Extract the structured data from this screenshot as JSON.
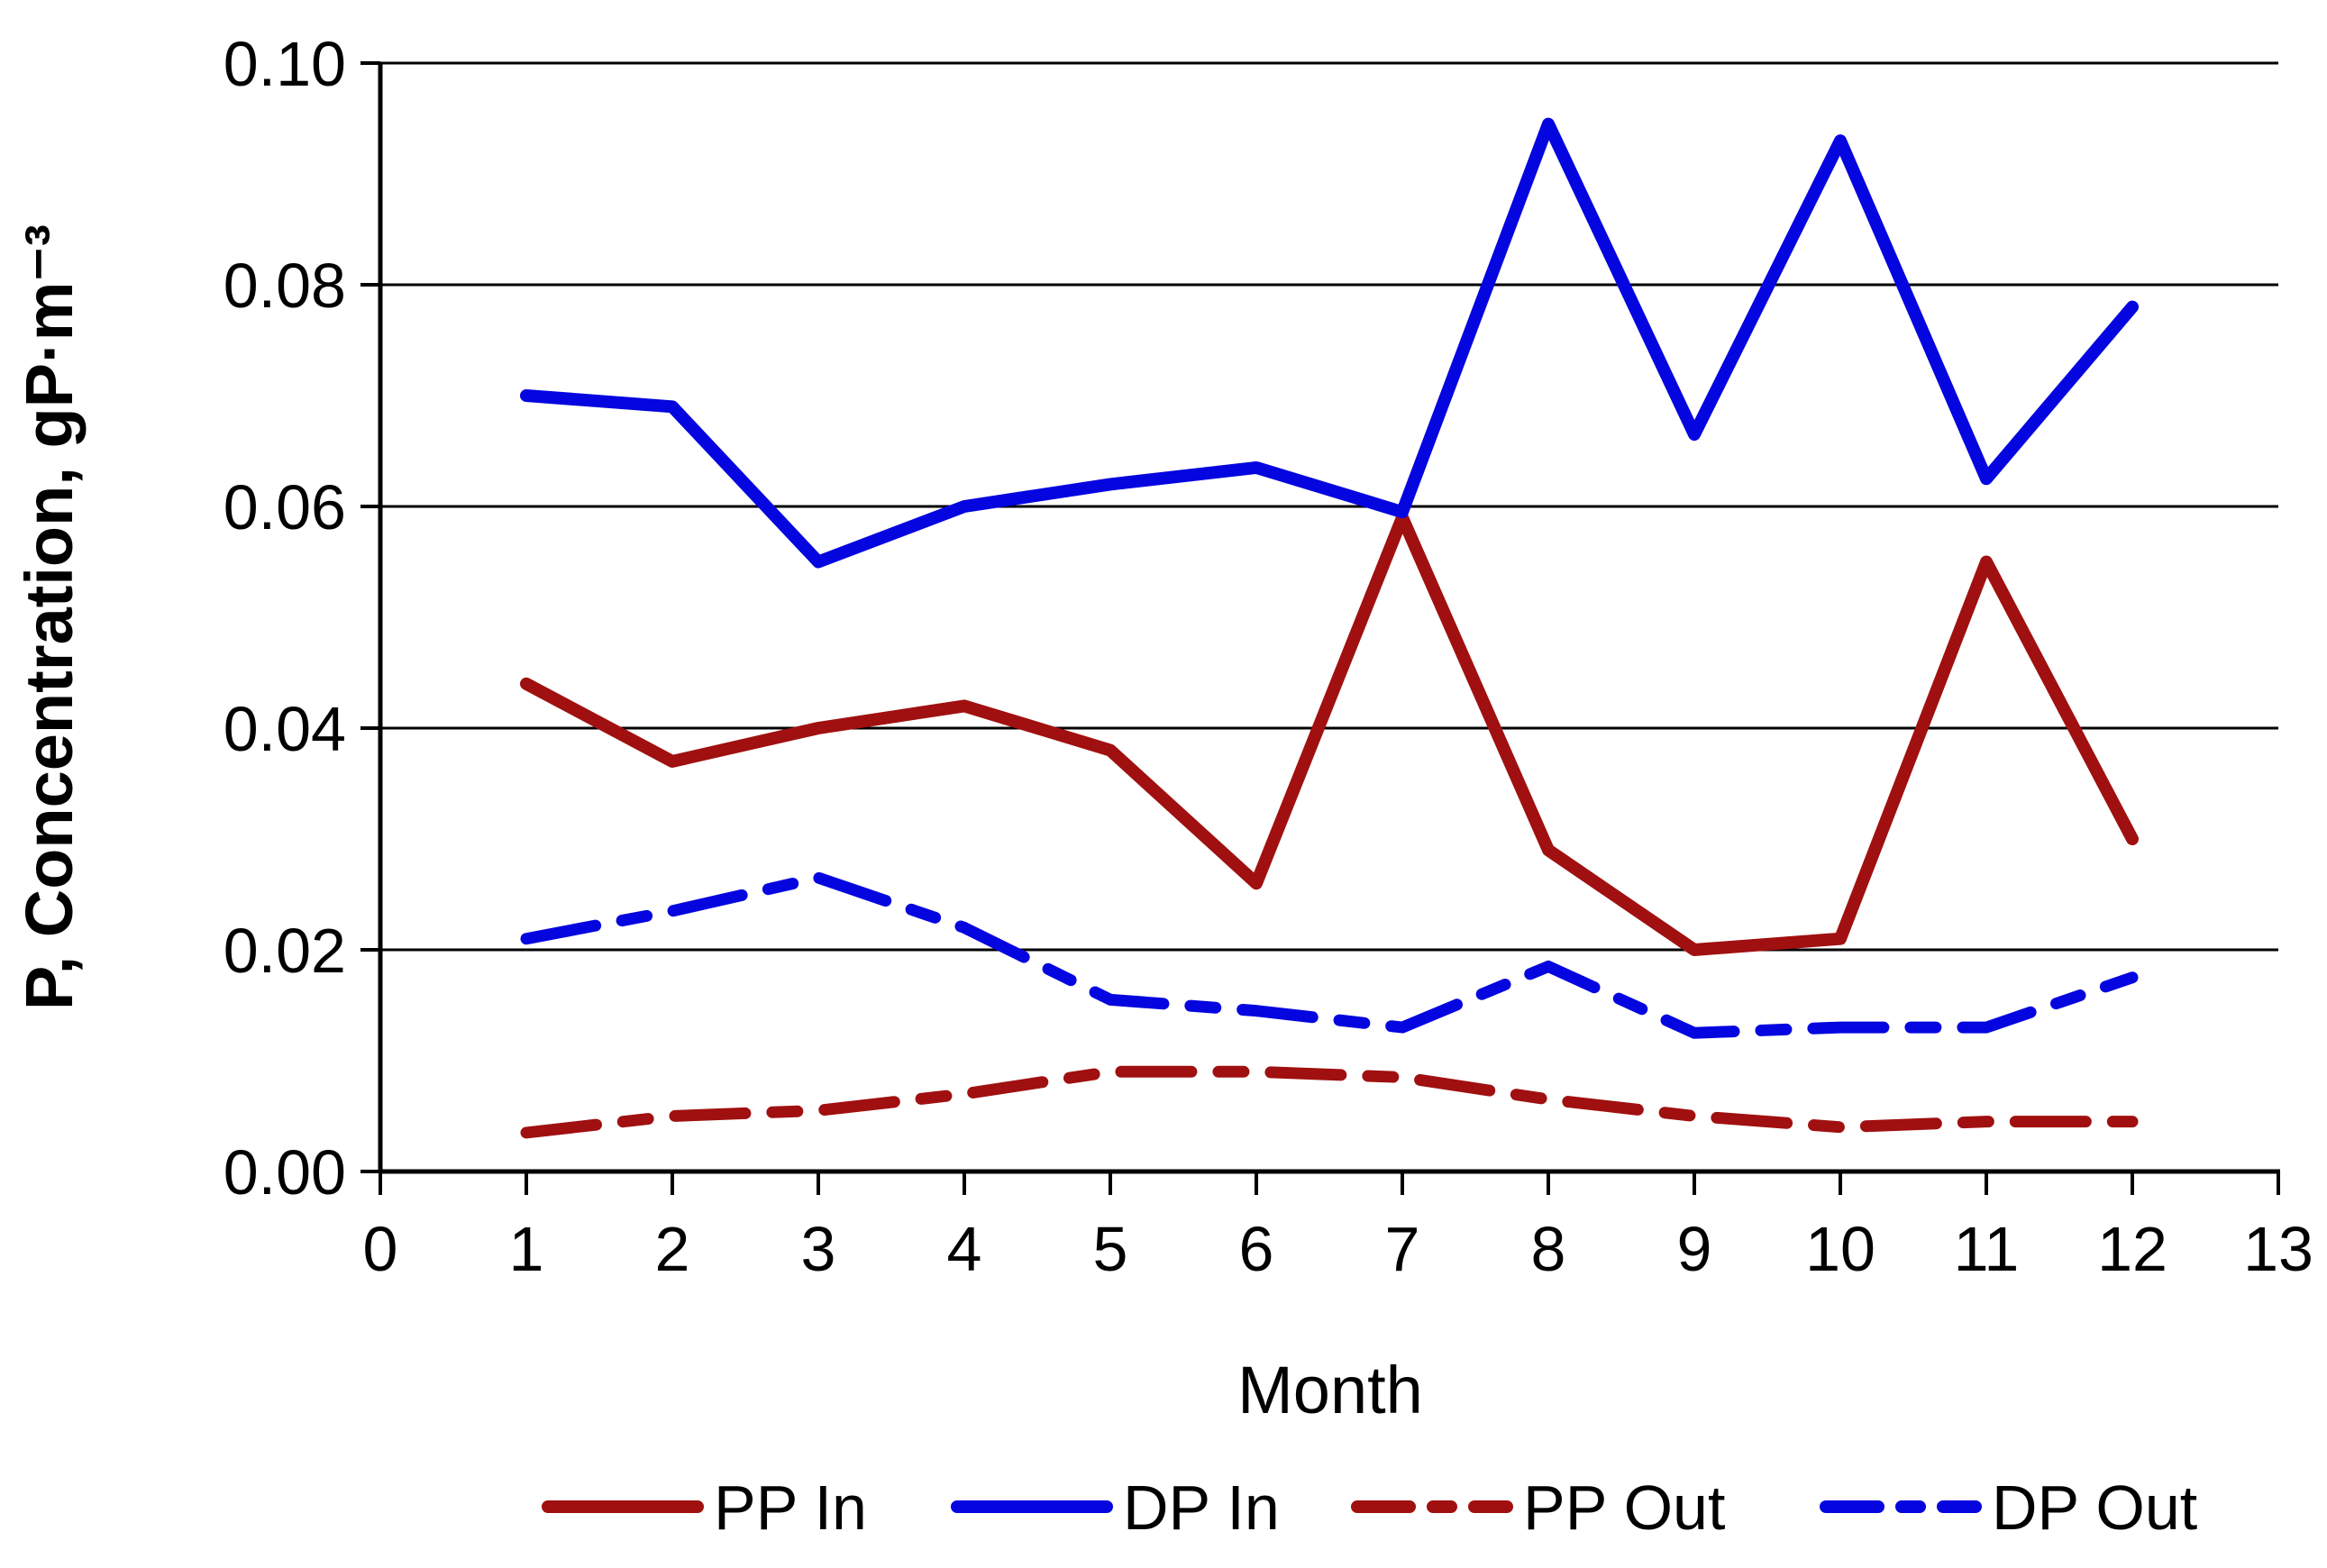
{
  "chart_data": {
    "type": "line",
    "title": "",
    "xlabel": "Month",
    "ylabel": "P, Concentration, gP·m⁻³",
    "x": [
      1,
      2,
      3,
      4,
      5,
      6,
      7,
      8,
      9,
      10,
      11,
      12
    ],
    "xlim": [
      0,
      13
    ],
    "ylim": [
      0.0,
      0.1
    ],
    "xtick_labels": [
      "0",
      "1",
      "2",
      "3",
      "4",
      "5",
      "6",
      "7",
      "8",
      "9",
      "10",
      "11",
      "12",
      "13"
    ],
    "ytick_values": [
      0.0,
      0.02,
      0.04,
      0.06,
      0.08,
      0.1
    ],
    "ytick_labels": [
      "0.00",
      "0.02",
      "0.04",
      "0.06",
      "0.08",
      "0.10"
    ],
    "grid": "horizontal",
    "legend_position": "bottom",
    "colors": {
      "dark_red": "#A01010",
      "blue": "#0505E0",
      "axis": "#000000",
      "background": "#FFFFFF"
    },
    "series": [
      {
        "name": "PP In",
        "color": "#A01010",
        "style": "solid",
        "values": [
          0.044,
          0.037,
          0.04,
          0.042,
          0.038,
          0.026,
          0.059,
          0.029,
          0.02,
          0.021,
          0.055,
          0.03
        ]
      },
      {
        "name": "DP In",
        "color": "#0505E0",
        "style": "solid",
        "values": [
          0.07,
          0.069,
          0.055,
          0.06,
          0.062,
          0.0635,
          0.0595,
          0.0945,
          0.0665,
          0.093,
          0.0625,
          0.078
        ]
      },
      {
        "name": "PP Out",
        "color": "#A01010",
        "style": "dash-dot",
        "values": [
          0.0035,
          0.005,
          0.0055,
          0.007,
          0.009,
          0.009,
          0.0085,
          0.0065,
          0.005,
          0.004,
          0.0045,
          0.0045
        ]
      },
      {
        "name": "DP Out",
        "color": "#0505E0",
        "style": "dash-dot",
        "values": [
          0.021,
          0.0235,
          0.0265,
          0.022,
          0.0155,
          0.0145,
          0.013,
          0.0185,
          0.0125,
          0.013,
          0.013,
          0.0175
        ]
      }
    ]
  }
}
